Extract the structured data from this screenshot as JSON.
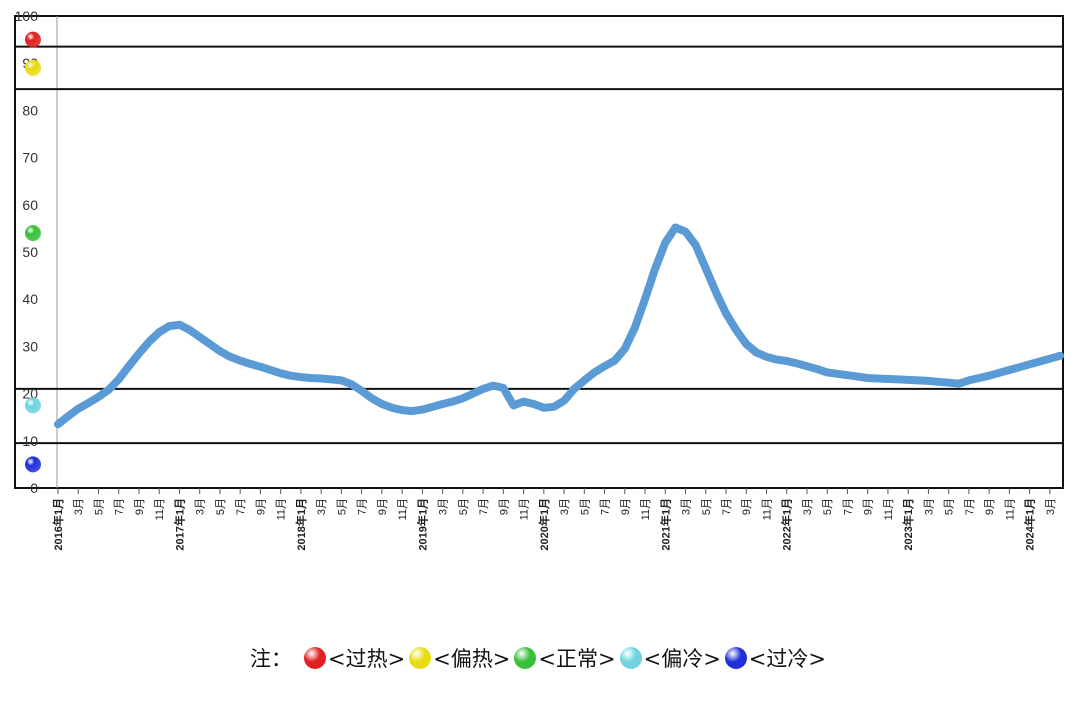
{
  "chart_data": {
    "type": "line",
    "title": "",
    "xlabel": "",
    "ylabel": "",
    "ylim": [
      0,
      100
    ],
    "yticks": [
      "0",
      "10",
      "20",
      "30",
      "40",
      "50",
      "60",
      "70",
      "80",
      "90",
      "100"
    ],
    "x_tick_labels": [
      "2016年1月",
      "3月",
      "5月",
      "7月",
      "9月",
      "11月",
      "2017年1月",
      "3月",
      "5月",
      "7月",
      "9月",
      "11月",
      "2018年1月",
      "3月",
      "5月",
      "7月",
      "9月",
      "11月",
      "2019年1月",
      "3月",
      "5月",
      "7月",
      "9月",
      "11月",
      "2020年1月",
      "3月",
      "5月",
      "7月",
      "9月",
      "11月",
      "2021年1月",
      "3月",
      "5月",
      "7月",
      "9月",
      "11月",
      "2022年1月",
      "3月",
      "5月",
      "7月",
      "9月",
      "11月",
      "2023年1月",
      "3月",
      "5月",
      "7月",
      "9月",
      "11月",
      "2024年1月",
      "3月"
    ],
    "series": [
      {
        "color": "#5b9bd5",
        "values": [
          13.5,
          15.2,
          16.8,
          18.0,
          19.3,
          20.8,
          23.0,
          25.8,
          28.5,
          31.0,
          33.0,
          34.3,
          34.6,
          33.5,
          32.0,
          30.5,
          29.0,
          27.8,
          27.0,
          26.3,
          25.7,
          25.0,
          24.3,
          23.8,
          23.5,
          23.3,
          23.2,
          23.0,
          22.8,
          22.0,
          20.6,
          19.0,
          17.8,
          17.0,
          16.5,
          16.3,
          16.6,
          17.2,
          17.8,
          18.3,
          19.0,
          20.0,
          21.0,
          21.7,
          21.2,
          17.5,
          18.3,
          17.8,
          17.0,
          17.2,
          18.5,
          21.0,
          22.8,
          24.5,
          25.8,
          27.0,
          29.5,
          34.0,
          40.0,
          46.5,
          52.0,
          55.2,
          54.3,
          51.5,
          46.5,
          41.5,
          37.0,
          33.5,
          30.5,
          28.7,
          27.8,
          27.2,
          26.9,
          26.4,
          25.8,
          25.2,
          24.5,
          24.2,
          23.9,
          23.6,
          23.3,
          23.2,
          23.1,
          23.0,
          22.9,
          22.8,
          22.7,
          22.5,
          22.3,
          22.1,
          22.8,
          23.3,
          23.8,
          24.4,
          25.0,
          25.6,
          26.2,
          26.8,
          27.4,
          28.0
        ]
      }
    ],
    "zones": [
      {
        "label": "过热",
        "color": "#e02020",
        "value": 95
      },
      {
        "label": "偏热",
        "color": "#e8dc10",
        "value": 89
      },
      {
        "label": "正常",
        "color": "#38c038",
        "value": 54
      },
      {
        "label": "偏冷",
        "color": "#70d4e0",
        "value": 17.5
      },
      {
        "label": "过冷",
        "color": "#2030d8",
        "value": 5
      }
    ],
    "zone_boundaries": [
      93.5,
      84.5,
      21,
      9.5
    ],
    "grid": false
  },
  "legend": {
    "prefix": "注：",
    "items": [
      {
        "label": "<过热>",
        "color": "#e02020",
        "icon": "red-ball-icon"
      },
      {
        "label": "<偏热>",
        "color": "#e8dc10",
        "icon": "yellow-ball-icon"
      },
      {
        "label": "<正常>",
        "color": "#38c038",
        "icon": "green-ball-icon"
      },
      {
        "label": "<偏冷>",
        "color": "#70d4e0",
        "icon": "cyan-ball-icon"
      },
      {
        "label": "<过冷>",
        "color": "#2030d8",
        "icon": "blue-ball-icon"
      }
    ]
  }
}
